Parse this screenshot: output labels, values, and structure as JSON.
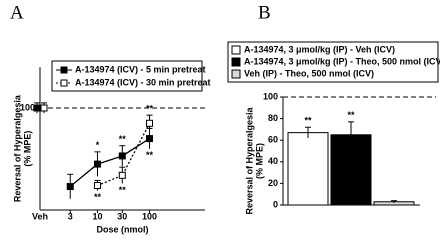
{
  "chart_data": [
    {
      "type": "line",
      "panel": "A",
      "ylabel": [
        "Reversal of Hyperalgesia",
        "(% MPE)"
      ],
      "xlabel": "Dose (nmol)",
      "xscale": "log",
      "xlim": [
        1,
        1000
      ],
      "xticks": [
        3,
        10,
        30,
        100
      ],
      "ylim": [
        0,
        140
      ],
      "yticks": [
        100
      ],
      "reference": 100,
      "veh_label": "Veh",
      "series": [
        {
          "name": "A-134974 (ICV) - 5 min pretreat",
          "color": "#000000",
          "marker_fill": "#000000",
          "dash": "solid",
          "x": [
            3,
            10,
            30,
            100
          ],
          "values": [
            23,
            45,
            53,
            70
          ],
          "errors": [
            12,
            12,
            10,
            10
          ],
          "significance": [
            null,
            "*",
            "**",
            "**"
          ],
          "veh_value": 100,
          "veh_error": 5
        },
        {
          "name": "A-134974 (ICV) - 30 min pretreat",
          "color": "#000000",
          "marker_fill": "#ffffff",
          "dash": "dotted",
          "x": [
            10,
            30,
            100
          ],
          "values": [
            24,
            34,
            85
          ],
          "errors": [
            5,
            8,
            8
          ],
          "significance": [
            "**",
            "**",
            "**"
          ],
          "veh_value": 100,
          "veh_error": 5
        }
      ]
    },
    {
      "type": "bar",
      "panel": "B",
      "ylabel": [
        "Reversal of Hyperalgesia",
        "(% MPE)"
      ],
      "ylim": [
        0,
        100
      ],
      "yticks": [
        0,
        20,
        40,
        60,
        80,
        100
      ],
      "reference": 100,
      "series": [
        {
          "name": "A-134974, 3 μmol/kg (IP) - Veh (ICV)",
          "color": "#ffffff",
          "values": [
            67
          ],
          "errors": [
            5
          ],
          "significance": [
            "**"
          ]
        },
        {
          "name": "A-134974, 3 μmol/kg (IP) - Theo, 500 nmol (ICV)",
          "color": "#000000",
          "values": [
            65
          ],
          "errors": [
            12
          ],
          "significance": [
            "**"
          ]
        },
        {
          "name": "Veh (IP) - Theo, 500 nmol (ICV)",
          "color": "#d9d9d9",
          "values": [
            3
          ],
          "errors": [
            1
          ],
          "significance": [
            null
          ]
        }
      ]
    }
  ]
}
